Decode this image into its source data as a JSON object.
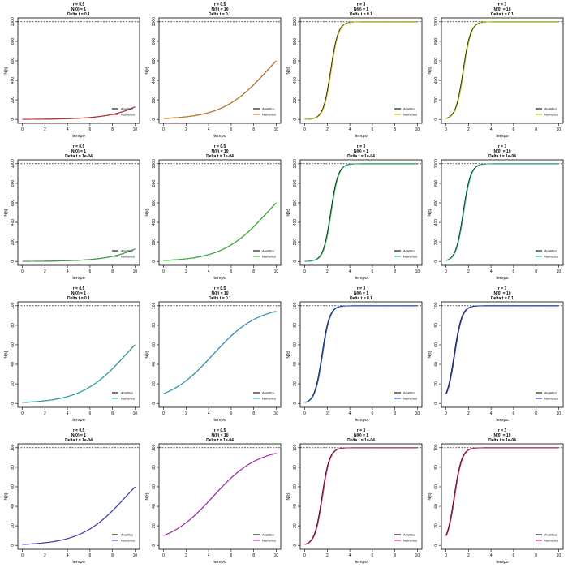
{
  "layout": {
    "rows": 4,
    "cols": 4
  },
  "common": {
    "xlabel": "tempo",
    "ylabel": "N(t)",
    "legend": [
      "Analitico",
      "Numerico"
    ],
    "xticks": [
      0,
      2,
      4,
      6,
      8,
      10
    ],
    "analytic_color": "#222222"
  },
  "row_settings": [
    {
      "K": 1000,
      "dt": "0.1",
      "yticks": [
        0,
        200,
        400,
        600,
        800,
        1000
      ],
      "numeric_colors": [
        "#d62728",
        "#e08020",
        "#d4c400",
        "#b8d400"
      ]
    },
    {
      "K": 1000,
      "dt": "1e-04",
      "yticks": [
        0,
        200,
        400,
        600,
        800,
        1000
      ],
      "numeric_colors": [
        "#3cb43c",
        "#33cc33",
        "#22cc66",
        "#22cc99"
      ]
    },
    {
      "K": 100,
      "dt": "0.1",
      "yticks": [
        0,
        20,
        40,
        60,
        80,
        100
      ],
      "numeric_colors": [
        "#20c0c0",
        "#20b8d8",
        "#2060e0",
        "#2040d0"
      ]
    },
    {
      "K": 100,
      "dt": "1e-04",
      "yticks": [
        0,
        20,
        40,
        60,
        80,
        100
      ],
      "numeric_colors": [
        "#4040e0",
        "#c030d0",
        "#e02080",
        "#e0205a"
      ]
    }
  ],
  "col_settings": [
    {
      "r": 0.5,
      "N0": 1,
      "r_label": "r = 0.5",
      "n0_label": "N(0) = 1"
    },
    {
      "r": 0.5,
      "N0": 10,
      "r_label": "r = 0.5",
      "n0_label": "N(0) = 10"
    },
    {
      "r": 3,
      "N0": 1,
      "r_label": "r = 3",
      "n0_label": "N(0) = 1"
    },
    {
      "r": 3,
      "N0": 10,
      "r_label": "r = 3",
      "n0_label": "N(0) = 10"
    }
  ],
  "chart_data": [
    {
      "type": "line",
      "title": "r = 0.5\nN(0) = 1\nDelta t = 0.1",
      "xlabel": "tempo",
      "ylabel": "N(t)",
      "xlim": [
        0,
        10
      ],
      "ylim": [
        0,
        1000
      ],
      "K_line": 1000,
      "model": "logistic",
      "r": 0.5,
      "N0": 1,
      "K": 1000,
      "series": [
        {
          "name": "Analitico"
        },
        {
          "name": "Numerico"
        }
      ]
    },
    {
      "type": "line",
      "title": "r = 0.5\nN(0) = 10\nDelta t = 0.1",
      "xlabel": "tempo",
      "ylabel": "N(t)",
      "xlim": [
        0,
        10
      ],
      "ylim": [
        0,
        1000
      ],
      "K_line": 1000,
      "model": "logistic",
      "r": 0.5,
      "N0": 10,
      "K": 1000,
      "series": [
        {
          "name": "Analitico"
        },
        {
          "name": "Numerico"
        }
      ]
    },
    {
      "type": "line",
      "title": "r = 3\nN(0) = 1\nDelta t = 0.1",
      "xlabel": "tempo",
      "ylabel": "N(t)",
      "xlim": [
        0,
        10
      ],
      "ylim": [
        0,
        1000
      ],
      "K_line": 1000,
      "model": "logistic",
      "r": 3,
      "N0": 1,
      "K": 1000,
      "series": [
        {
          "name": "Analitico"
        },
        {
          "name": "Numerico"
        }
      ]
    },
    {
      "type": "line",
      "title": "r = 3\nN(0) = 10\nDelta t = 0.1",
      "xlabel": "tempo",
      "ylabel": "N(t)",
      "xlim": [
        0,
        10
      ],
      "ylim": [
        0,
        1000
      ],
      "K_line": 1000,
      "model": "logistic",
      "r": 3,
      "N0": 10,
      "K": 1000,
      "series": [
        {
          "name": "Analitico"
        },
        {
          "name": "Numerico"
        }
      ]
    },
    {
      "type": "line",
      "title": "r = 0.5\nN(0) = 1\nDelta t = 1e-04",
      "xlabel": "tempo",
      "ylabel": "N(t)",
      "xlim": [
        0,
        10
      ],
      "ylim": [
        0,
        1000
      ],
      "K_line": 1000,
      "model": "logistic",
      "r": 0.5,
      "N0": 1,
      "K": 1000,
      "series": [
        {
          "name": "Analitico"
        },
        {
          "name": "Numerico"
        }
      ]
    },
    {
      "type": "line",
      "title": "r = 0.5\nN(0) = 10\nDelta t = 1e-04",
      "xlabel": "tempo",
      "ylabel": "N(t)",
      "xlim": [
        0,
        10
      ],
      "ylim": [
        0,
        1000
      ],
      "K_line": 1000,
      "model": "logistic",
      "r": 0.5,
      "N0": 10,
      "K": 1000,
      "series": [
        {
          "name": "Analitico"
        },
        {
          "name": "Numerico"
        }
      ]
    },
    {
      "type": "line",
      "title": "r = 3\nN(0) = 1\nDelta t = 1e-04",
      "xlabel": "tempo",
      "ylabel": "N(t)",
      "xlim": [
        0,
        10
      ],
      "ylim": [
        0,
        1000
      ],
      "K_line": 1000,
      "model": "logistic",
      "r": 3,
      "N0": 1,
      "K": 1000,
      "series": [
        {
          "name": "Analitico"
        },
        {
          "name": "Numerico"
        }
      ]
    },
    {
      "type": "line",
      "title": "r = 3\nN(0) = 10\nDelta t = 1e-04",
      "xlabel": "tempo",
      "ylabel": "N(t)",
      "xlim": [
        0,
        10
      ],
      "ylim": [
        0,
        1000
      ],
      "K_line": 1000,
      "model": "logistic",
      "r": 3,
      "N0": 10,
      "K": 1000,
      "series": [
        {
          "name": "Analitico"
        },
        {
          "name": "Numerico"
        }
      ]
    },
    {
      "type": "line",
      "title": "r = 0.5\nN(0) = 1\nDelta t = 0.1",
      "xlabel": "tempo",
      "ylabel": "N(t)",
      "xlim": [
        0,
        10
      ],
      "ylim": [
        0,
        100
      ],
      "K_line": 100,
      "model": "logistic",
      "r": 0.5,
      "N0": 1,
      "K": 100,
      "series": [
        {
          "name": "Analitico"
        },
        {
          "name": "Numerico"
        }
      ]
    },
    {
      "type": "line",
      "title": "r = 0.5\nN(0) = 10\nDelta t = 0.1",
      "xlabel": "tempo",
      "ylabel": "N(t)",
      "xlim": [
        0,
        10
      ],
      "ylim": [
        0,
        100
      ],
      "K_line": 100,
      "model": "logistic",
      "r": 0.5,
      "N0": 10,
      "K": 100,
      "series": [
        {
          "name": "Analitico"
        },
        {
          "name": "Numerico"
        }
      ]
    },
    {
      "type": "line",
      "title": "r = 3\nN(0) = 1\nDelta t = 0.1",
      "xlabel": "tempo",
      "ylabel": "N(t)",
      "xlim": [
        0,
        10
      ],
      "ylim": [
        0,
        100
      ],
      "K_line": 100,
      "model": "logistic",
      "r": 3,
      "N0": 1,
      "K": 100,
      "series": [
        {
          "name": "Analitico"
        },
        {
          "name": "Numerico"
        }
      ]
    },
    {
      "type": "line",
      "title": "r = 3\nN(0) = 10\nDelta t = 0.1",
      "xlabel": "tempo",
      "ylabel": "N(t)",
      "xlim": [
        0,
        10
      ],
      "ylim": [
        0,
        100
      ],
      "K_line": 100,
      "model": "logistic",
      "r": 3,
      "N0": 10,
      "K": 100,
      "series": [
        {
          "name": "Analitico"
        },
        {
          "name": "Numerico"
        }
      ]
    },
    {
      "type": "line",
      "title": "r = 0.5\nN(0) = 1\nDelta t = 1e-04",
      "xlabel": "tempo",
      "ylabel": "N(t)",
      "xlim": [
        0,
        10
      ],
      "ylim": [
        0,
        100
      ],
      "K_line": 100,
      "model": "logistic",
      "r": 0.5,
      "N0": 1,
      "K": 100,
      "series": [
        {
          "name": "Analitico"
        },
        {
          "name": "Numerico"
        }
      ]
    },
    {
      "type": "line",
      "title": "r = 0.5\nN(0) = 10\nDelta t = 1e-04",
      "xlabel": "tempo",
      "ylabel": "N(t)",
      "xlim": [
        0,
        10
      ],
      "ylim": [
        0,
        100
      ],
      "K_line": 100,
      "model": "logistic",
      "r": 0.5,
      "N0": 10,
      "K": 100,
      "series": [
        {
          "name": "Analitico"
        },
        {
          "name": "Numerico"
        }
      ]
    },
    {
      "type": "line",
      "title": "r = 3\nN(0) = 1\nDelta t = 1e-04",
      "xlabel": "tempo",
      "ylabel": "N(t)",
      "xlim": [
        0,
        10
      ],
      "ylim": [
        0,
        100
      ],
      "K_line": 100,
      "model": "logistic",
      "r": 3,
      "N0": 1,
      "K": 100,
      "series": [
        {
          "name": "Analitico"
        },
        {
          "name": "Numerico"
        }
      ]
    },
    {
      "type": "line",
      "title": "r = 3\nN(0) = 10\nDelta t = 1e-04",
      "xlabel": "tempo",
      "ylabel": "N(t)",
      "xlim": [
        0,
        10
      ],
      "ylim": [
        0,
        100
      ],
      "K_line": 100,
      "model": "logistic",
      "r": 3,
      "N0": 10,
      "K": 100,
      "series": [
        {
          "name": "Analitico"
        },
        {
          "name": "Numerico"
        }
      ]
    }
  ]
}
